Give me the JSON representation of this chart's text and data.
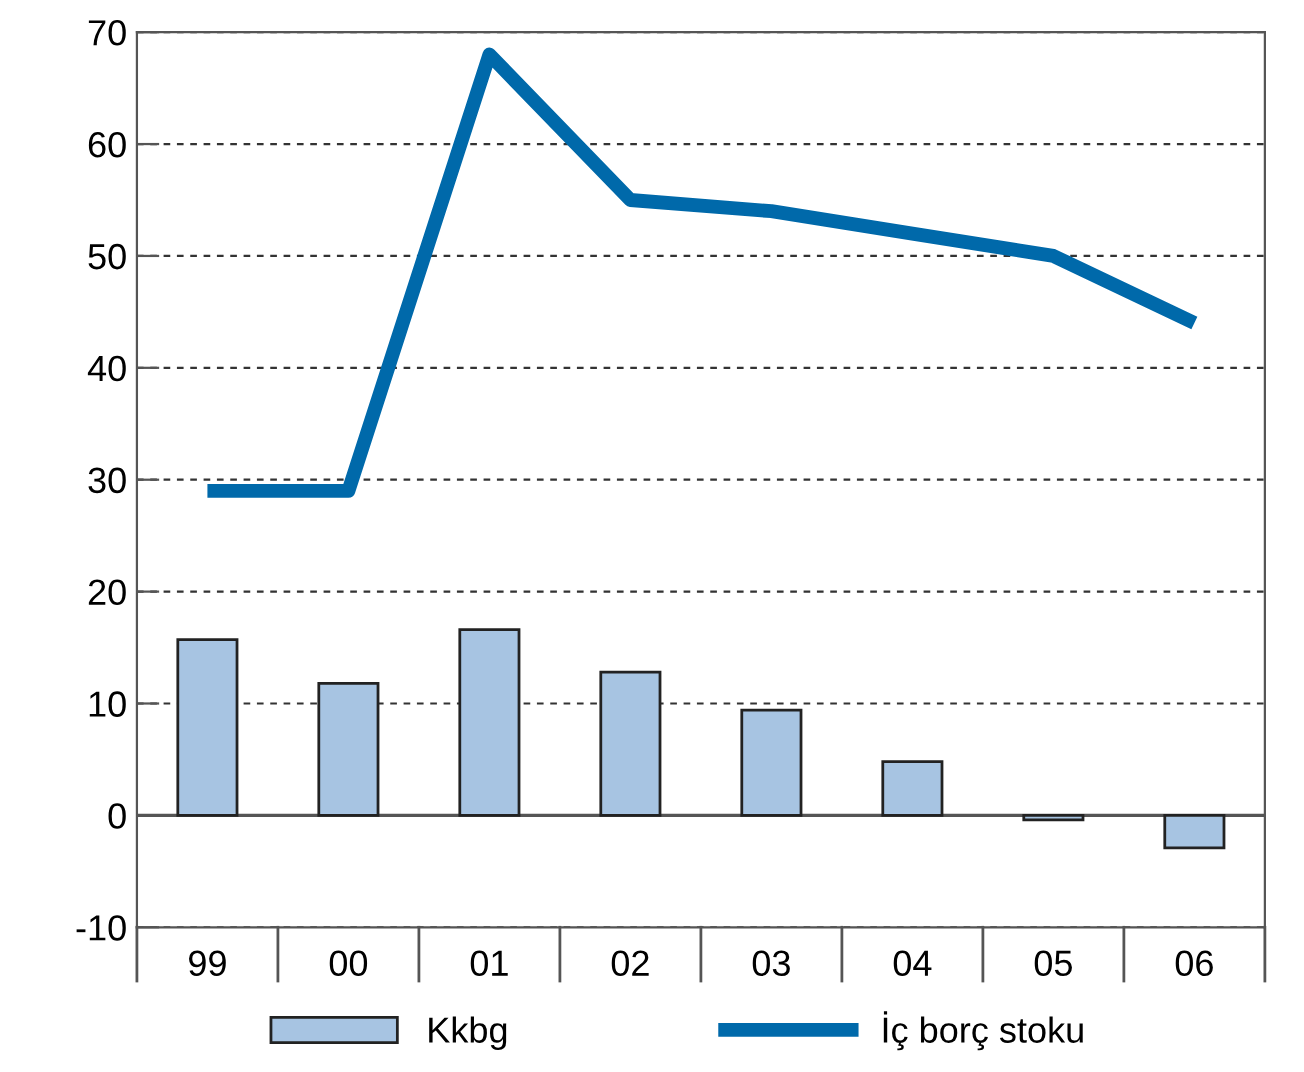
{
  "chart_data": {
    "type": "bar",
    "categories": [
      "99",
      "00",
      "01",
      "02",
      "03",
      "04",
      "05",
      "06"
    ],
    "series": [
      {
        "name": "Kkbg",
        "color": "#a7c4e2",
        "values": [
          15.7,
          11.8,
          16.6,
          12.8,
          9.4,
          4.8,
          -0.4,
          -2.9
        ]
      },
      {
        "name": "İç borç stoku",
        "type": "line",
        "color": "#0069aa",
        "values": [
          29,
          29,
          68,
          55,
          54,
          52,
          50,
          44
        ]
      }
    ],
    "ylim": [
      -10,
      70
    ],
    "yticks": [
      -10,
      0,
      10,
      20,
      30,
      40,
      50,
      60,
      70
    ],
    "grid": "y",
    "legend": "bottom",
    "ref_lines": [
      {
        "axis": "y",
        "value": 0,
        "color": "#555555",
        "line_style": "solid"
      }
    ]
  }
}
